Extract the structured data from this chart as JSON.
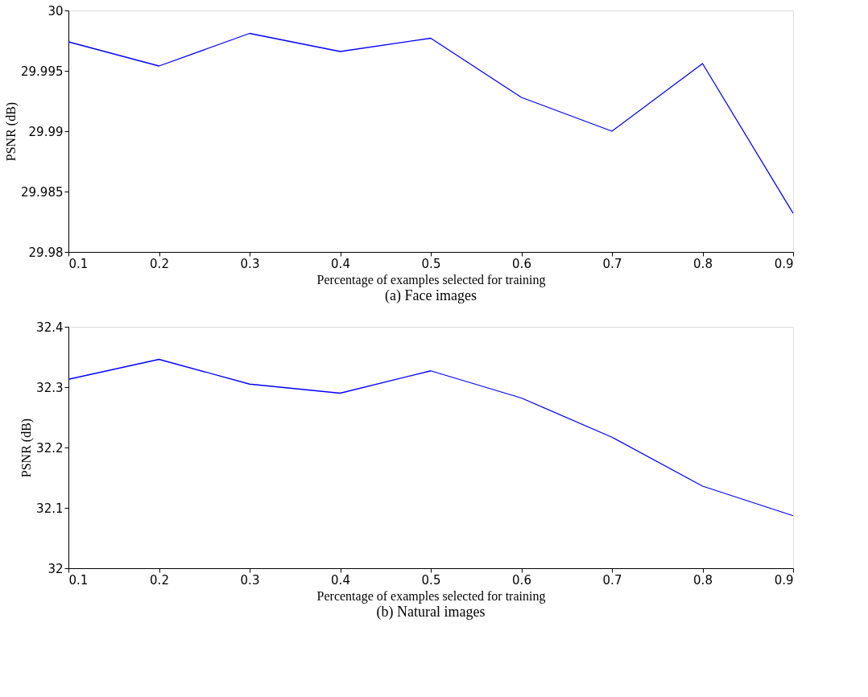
{
  "chart_data": [
    {
      "type": "line",
      "title": "(a) Face images",
      "xlabel": "Percentage of examples selected for training",
      "ylabel": "PSNR (dB)",
      "x": [
        0.1,
        0.2,
        0.3,
        0.4,
        0.5,
        0.6,
        0.7,
        0.8,
        0.9
      ],
      "series": [
        {
          "color": "#0000ff",
          "values": [
            29.9974,
            29.9954,
            29.9981,
            29.9966,
            29.9977,
            29.9928,
            29.99,
            29.9956,
            29.9832
          ]
        }
      ],
      "xlim": [
        0.1,
        0.9
      ],
      "xticks": [
        0.1,
        0.2,
        0.3,
        0.4,
        0.5,
        0.6,
        0.7,
        0.8,
        0.9
      ],
      "ylim": [
        29.98,
        30
      ],
      "yticks": [
        29.98,
        29.985,
        29.99,
        29.995,
        30
      ],
      "grid": false,
      "line_style": "solid"
    },
    {
      "type": "line",
      "title": "(b) Natural images",
      "xlabel": "Percentage of examples selected for training",
      "ylabel": "PSNR (dB)",
      "x": [
        0.1,
        0.2,
        0.3,
        0.4,
        0.5,
        0.6,
        0.7,
        0.8,
        0.9
      ],
      "series": [
        {
          "color": "#0000ff",
          "values": [
            32.313,
            32.346,
            32.305,
            32.29,
            32.327,
            32.282,
            32.217,
            32.136,
            32.087
          ]
        }
      ],
      "xlim": [
        0.1,
        0.9
      ],
      "xticks": [
        0.1,
        0.2,
        0.3,
        0.4,
        0.5,
        0.6,
        0.7,
        0.8,
        0.9
      ],
      "ylim": [
        32,
        32.4
      ],
      "yticks": [
        32,
        32.1,
        32.2,
        32.3,
        32.4
      ],
      "grid": false,
      "line_style": "solid"
    }
  ]
}
